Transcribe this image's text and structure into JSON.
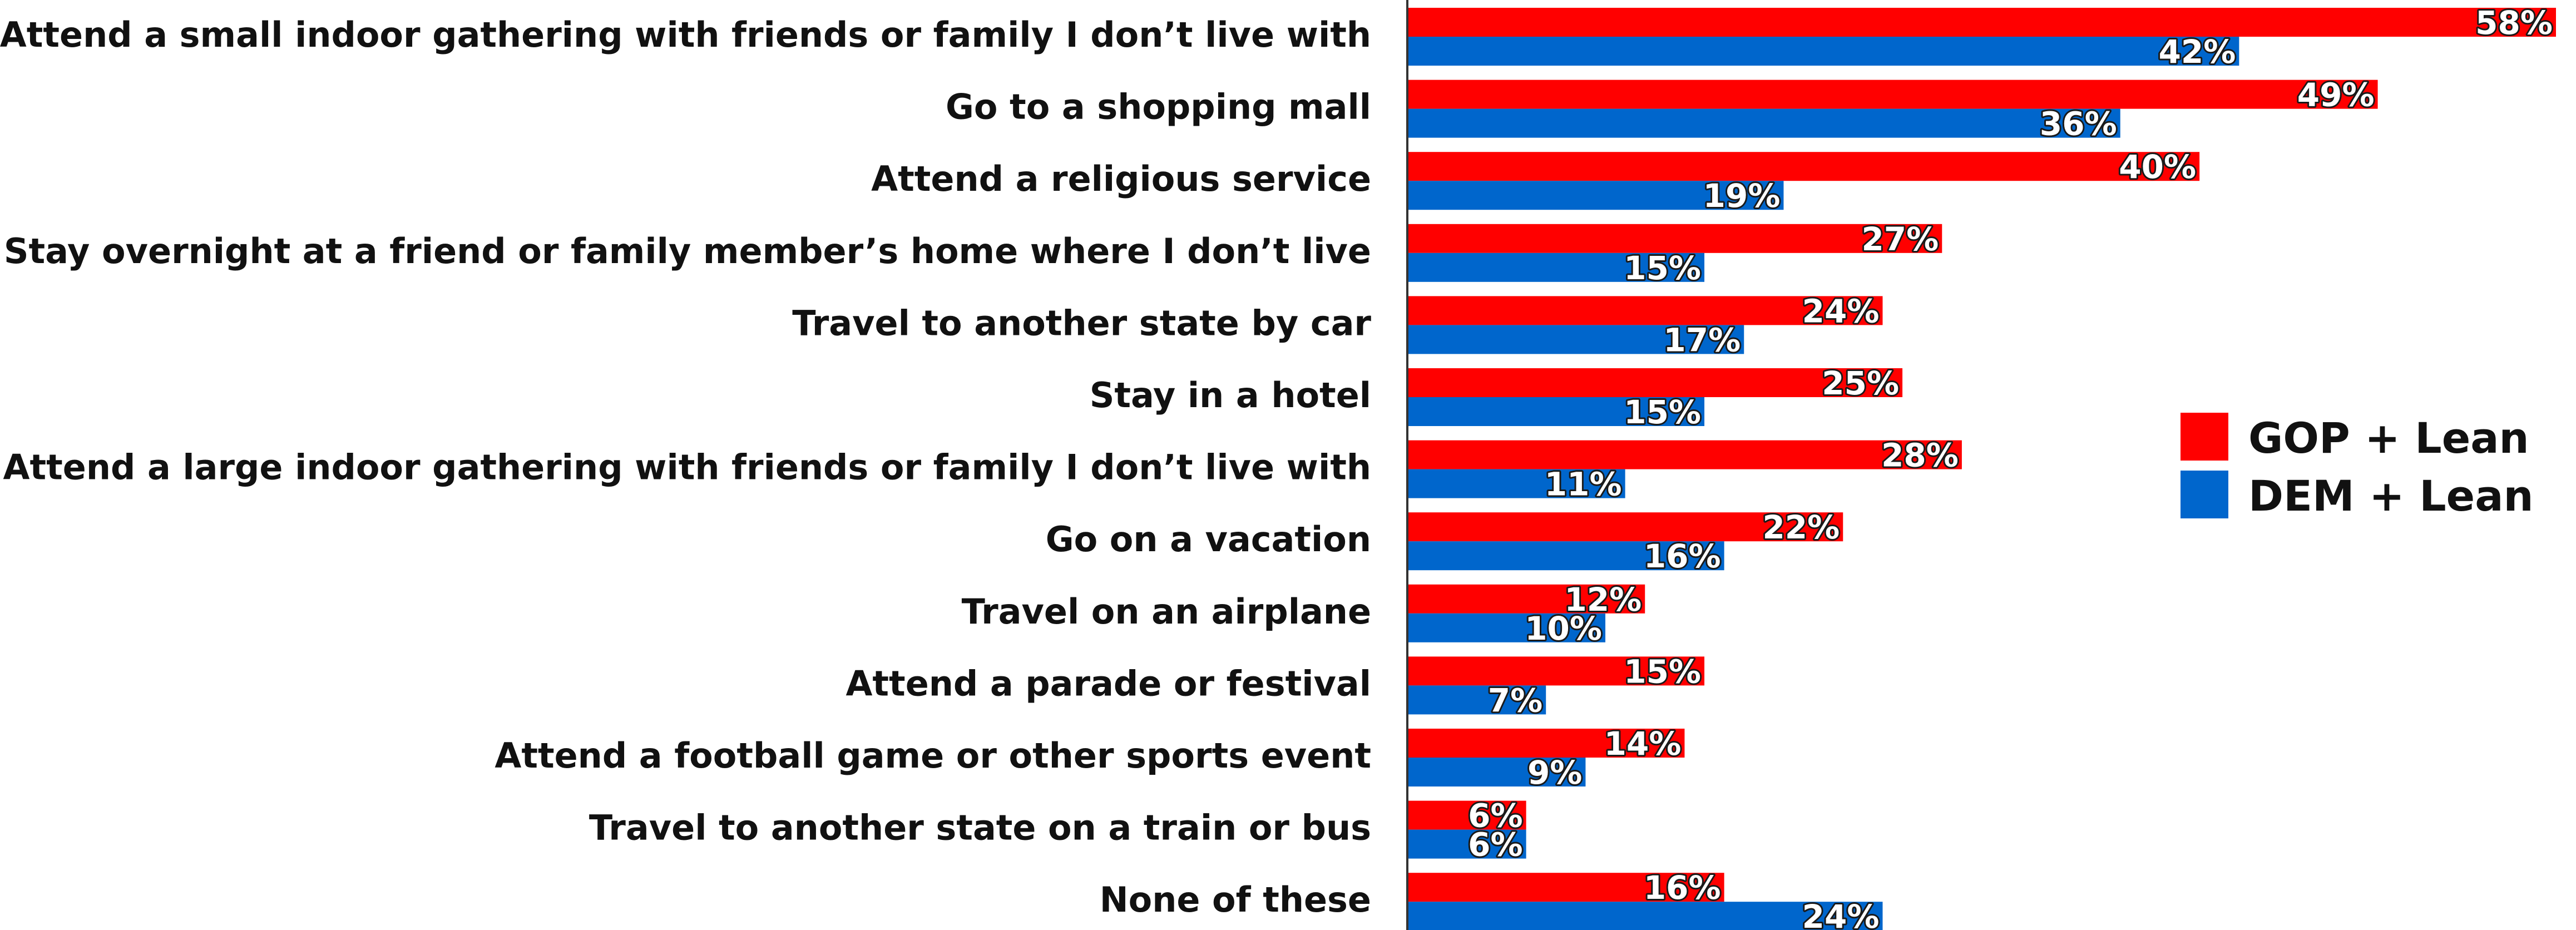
{
  "chart_data": {
    "type": "bar",
    "orientation": "horizontal",
    "categories": [
      "Attend a small indoor gathering with friends or family I don’t live with",
      "Go to a shopping mall",
      "Attend a religious service",
      "Stay overnight at a friend or family member’s home where I don’t live",
      "Travel to another state by car",
      "Stay in a hotel",
      "Attend a large indoor gathering with friends or family I don’t live with",
      "Go on a vacation",
      "Travel on an airplane",
      "Attend a parade or festival",
      "Attend a football game or other sports event",
      "Travel to another state on a train or bus",
      "None of these"
    ],
    "series": [
      {
        "name": "GOP + Lean",
        "color": "#ff0000",
        "values": [
          58,
          49,
          40,
          27,
          24,
          25,
          28,
          22,
          12,
          15,
          14,
          6,
          16
        ]
      },
      {
        "name": "DEM + Lean",
        "color": "#0066cc",
        "values": [
          42,
          36,
          19,
          15,
          17,
          15,
          11,
          16,
          10,
          7,
          9,
          6,
          24
        ]
      }
    ],
    "value_suffix": "%",
    "xlim": [
      0,
      58
    ],
    "grid": false,
    "legend_position": "right"
  }
}
